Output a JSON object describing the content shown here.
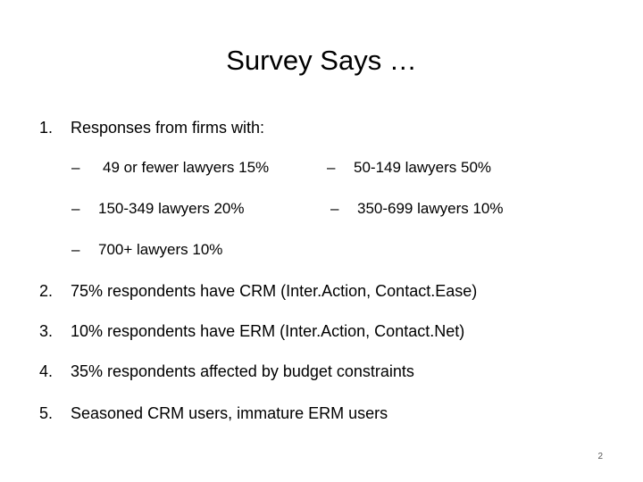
{
  "title": "Survey Says …",
  "items": [
    {
      "num": "1.",
      "text": "Responses from firms with:"
    },
    {
      "num": "2.",
      "text": "75% respondents have CRM (Inter.Action, Contact.Ease)"
    },
    {
      "num": "3.",
      "text": "10% respondents have ERM (Inter.Action, Contact.Net)"
    },
    {
      "num": "4.",
      "text": "35% respondents affected by budget constraints"
    },
    {
      "num": "5.",
      "text": "Seasoned CRM users, immature ERM users"
    }
  ],
  "sub_items": [
    {
      "dash": "–",
      "text": "49 or fewer lawyers 15%"
    },
    {
      "dash": "–",
      "text": "50-149 lawyers 50%"
    },
    {
      "dash": "–",
      "text": "150-349 lawyers 20%"
    },
    {
      "dash": "–",
      "text": "350-699 lawyers 10%"
    },
    {
      "dash": "–",
      "text": "700+ lawyers 10%"
    }
  ],
  "page_number": "2"
}
